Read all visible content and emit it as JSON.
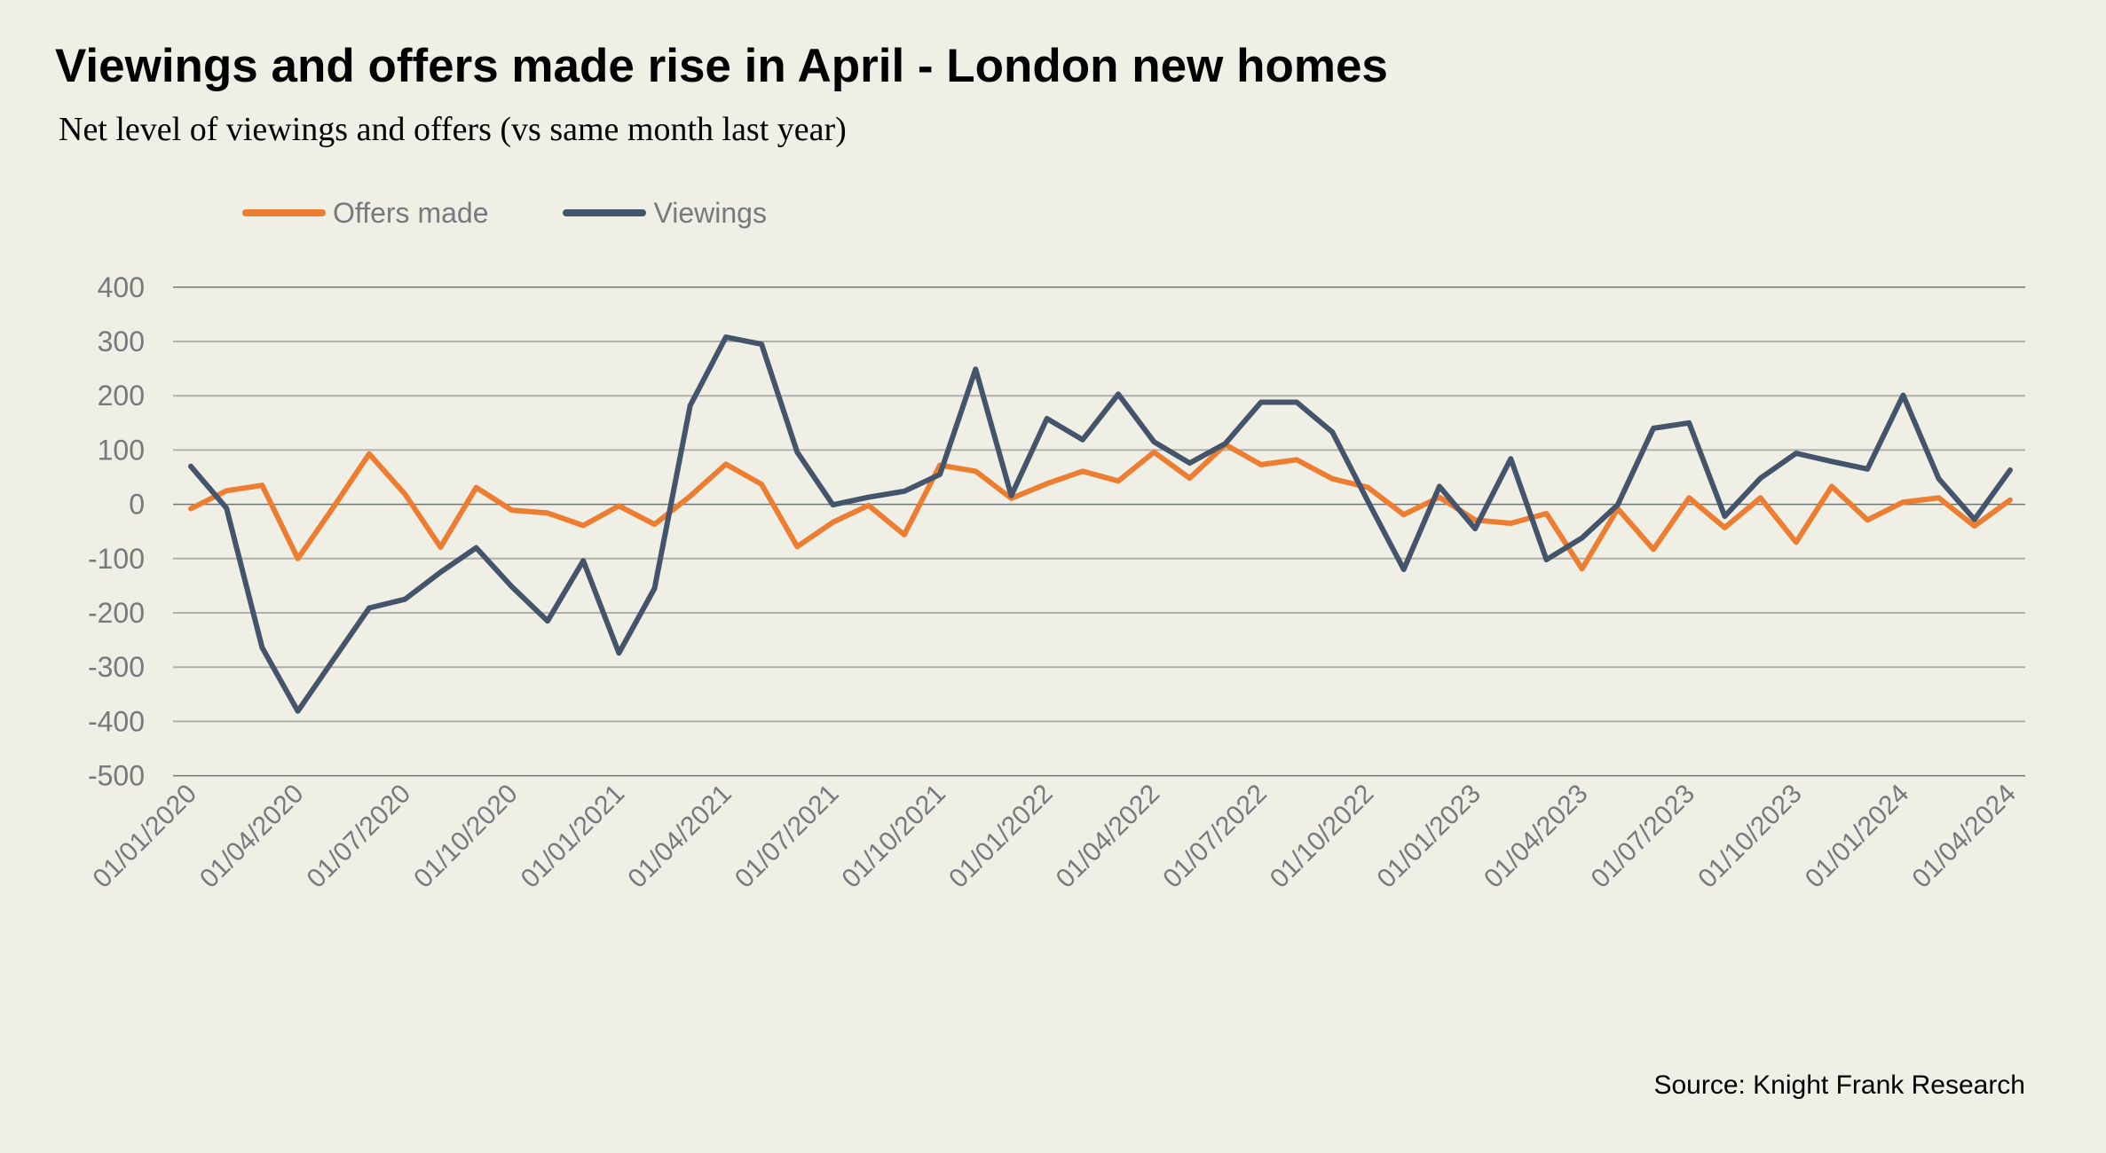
{
  "chart_data": {
    "type": "line",
    "title": "Viewings and offers made rise in April - London new homes",
    "subtitle": "Net level of viewings and offers (vs same month last year)",
    "xlabel": "",
    "ylabel": "",
    "ylim": [
      -500,
      400
    ],
    "yticks": [
      "400",
      "300",
      "200",
      "100",
      "0",
      "-100",
      "-200",
      "-300",
      "-400",
      "-500"
    ],
    "ytick_values": [
      400,
      300,
      200,
      100,
      0,
      -100,
      -200,
      -300,
      -400,
      -500
    ],
    "grid": true,
    "legend_position": "top-left",
    "x": [
      "01/01/2020",
      "01/02/2020",
      "01/03/2020",
      "01/04/2020",
      "01/05/2020",
      "01/06/2020",
      "01/07/2020",
      "01/08/2020",
      "01/09/2020",
      "01/10/2020",
      "01/11/2020",
      "01/12/2020",
      "01/01/2021",
      "01/02/2021",
      "01/03/2021",
      "01/04/2021",
      "01/05/2021",
      "01/06/2021",
      "01/07/2021",
      "01/08/2021",
      "01/09/2021",
      "01/10/2021",
      "01/11/2021",
      "01/12/2021",
      "01/01/2022",
      "01/02/2022",
      "01/03/2022",
      "01/04/2022",
      "01/05/2022",
      "01/06/2022",
      "01/07/2022",
      "01/08/2022",
      "01/09/2022",
      "01/10/2022",
      "01/11/2022",
      "01/12/2022",
      "01/01/2023",
      "01/02/2023",
      "01/03/2023",
      "01/04/2023",
      "01/05/2023",
      "01/06/2023",
      "01/07/2023",
      "01/08/2023",
      "01/09/2023",
      "01/10/2023",
      "01/11/2023",
      "01/12/2023",
      "01/01/2024",
      "01/02/2024",
      "01/03/2024",
      "01/04/2024"
    ],
    "xtick_labels": [
      "01/01/2020",
      "01/04/2020",
      "01/07/2020",
      "01/10/2020",
      "01/01/2021",
      "01/04/2021",
      "01/07/2021",
      "01/10/2021",
      "01/01/2022",
      "01/04/2022",
      "01/07/2022",
      "01/10/2022",
      "01/01/2023",
      "01/04/2023",
      "01/07/2023",
      "01/10/2023",
      "01/01/2024",
      "01/04/2024"
    ],
    "series": [
      {
        "name": "Offers made",
        "color": "#ed7d31",
        "values": [
          -8,
          25,
          35,
          -100,
          -5,
          93,
          19,
          -79,
          31,
          -11,
          -16,
          -39,
          -3,
          -37,
          15,
          74,
          37,
          -78,
          -33,
          -2,
          -56,
          72,
          61,
          11,
          38,
          61,
          43,
          96,
          48,
          110,
          73,
          82,
          47,
          31,
          -19,
          13,
          -29,
          -35,
          -17,
          -119,
          -8,
          -83,
          12,
          -43,
          12,
          -70,
          33,
          -29,
          4,
          12,
          -40,
          8
        ]
      },
      {
        "name": "Viewings",
        "color": "#44546a",
        "values": [
          70,
          -7,
          -264,
          -381,
          -286,
          -191,
          -175,
          -125,
          -80,
          -152,
          -215,
          -104,
          -274,
          -155,
          182,
          308,
          295,
          96,
          -1,
          13,
          24,
          55,
          249,
          16,
          158,
          119,
          203,
          115,
          76,
          112,
          188,
          188,
          133,
          5,
          -120,
          33,
          -45,
          84,
          -102,
          -62,
          -1,
          140,
          150,
          -22,
          48,
          94,
          79,
          65,
          201,
          47,
          -28,
          63
        ]
      }
    ],
    "source": "Source: Knight Frank Research"
  }
}
